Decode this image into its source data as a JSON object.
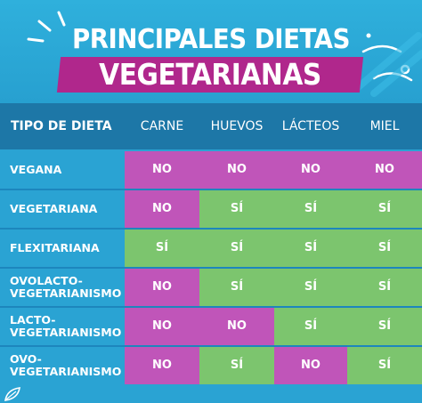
{
  "title": {
    "line1": "PRINCIPALES DIETAS",
    "line2": "VEGETARIANAS"
  },
  "colors": {
    "background": "#2aa3d3",
    "header_row": "#1d77a7",
    "title_highlight": "#b0278c",
    "no": "#c055b9",
    "si": "#7cc56e"
  },
  "table": {
    "columns": [
      "TIPO DE DIETA",
      "CARNE",
      "HUEVOS",
      "LÁCTEOS",
      "MIEL"
    ],
    "rows": [
      {
        "label": "VEGANA",
        "label2": "",
        "values": [
          "NO",
          "NO",
          "NO",
          "NO"
        ]
      },
      {
        "label": "VEGETARIANA",
        "label2": "",
        "values": [
          "NO",
          "SÍ",
          "SÍ",
          "SÍ"
        ]
      },
      {
        "label": "FLEXITARIANA",
        "label2": "",
        "values": [
          "SÍ",
          "SÍ",
          "SÍ",
          "SÍ"
        ]
      },
      {
        "label": "OVOLACTO-",
        "label2": "VEGETARIANISMO",
        "values": [
          "NO",
          "SÍ",
          "SÍ",
          "SÍ"
        ]
      },
      {
        "label": "LACTO-",
        "label2": "VEGETARIANISMO",
        "values": [
          "NO",
          "NO",
          "SÍ",
          "SÍ"
        ]
      },
      {
        "label": "OVO-",
        "label2": "VEGETARIANISMO",
        "values": [
          "NO",
          "SÍ",
          "NO",
          "SÍ"
        ]
      }
    ]
  }
}
